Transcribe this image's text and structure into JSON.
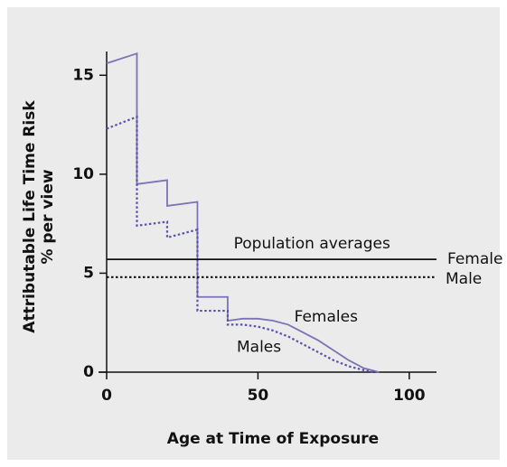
{
  "chart_data": {
    "type": "line",
    "xlabel": "Age at Time of Exposure",
    "ylabel": [
      "Attributable Life Time Risk",
      "% per view"
    ],
    "annotation": "Population averages",
    "xlim": [
      0,
      109
    ],
    "ylim": [
      0,
      16.2
    ],
    "xticks": [
      0,
      50,
      100
    ],
    "yticks": [
      0,
      5,
      10,
      15
    ],
    "series": [
      {
        "name": "Females",
        "color": "#7b73b5",
        "dash": "solid",
        "x": [
          0,
          10,
          10,
          20,
          20,
          30,
          30,
          40,
          40,
          45,
          50,
          55,
          60,
          65,
          70,
          75,
          80,
          85,
          90
        ],
        "values": [
          15.6,
          16.1,
          9.5,
          9.7,
          8.4,
          8.6,
          3.8,
          3.8,
          2.6,
          2.7,
          2.7,
          2.6,
          2.4,
          2.0,
          1.6,
          1.1,
          0.6,
          0.2,
          0
        ]
      },
      {
        "name": "Males",
        "color": "#5a52a8",
        "dash": "dotted",
        "x": [
          0,
          10,
          10,
          20,
          20,
          30,
          30,
          40,
          40,
          45,
          50,
          55,
          60,
          65,
          70,
          75,
          80,
          85,
          88
        ],
        "values": [
          12.3,
          12.9,
          7.4,
          7.6,
          6.8,
          7.2,
          3.1,
          3.1,
          2.4,
          2.4,
          2.3,
          2.1,
          1.8,
          1.4,
          1.0,
          0.6,
          0.3,
          0.1,
          0
        ]
      },
      {
        "name": "Female",
        "color": "#111111",
        "dash": "solid",
        "x": [
          0,
          109
        ],
        "values": [
          5.7,
          5.7
        ]
      },
      {
        "name": "Male",
        "color": "#111111",
        "dash": "dotted",
        "x": [
          0,
          109
        ],
        "values": [
          4.8,
          4.8
        ]
      }
    ]
  }
}
